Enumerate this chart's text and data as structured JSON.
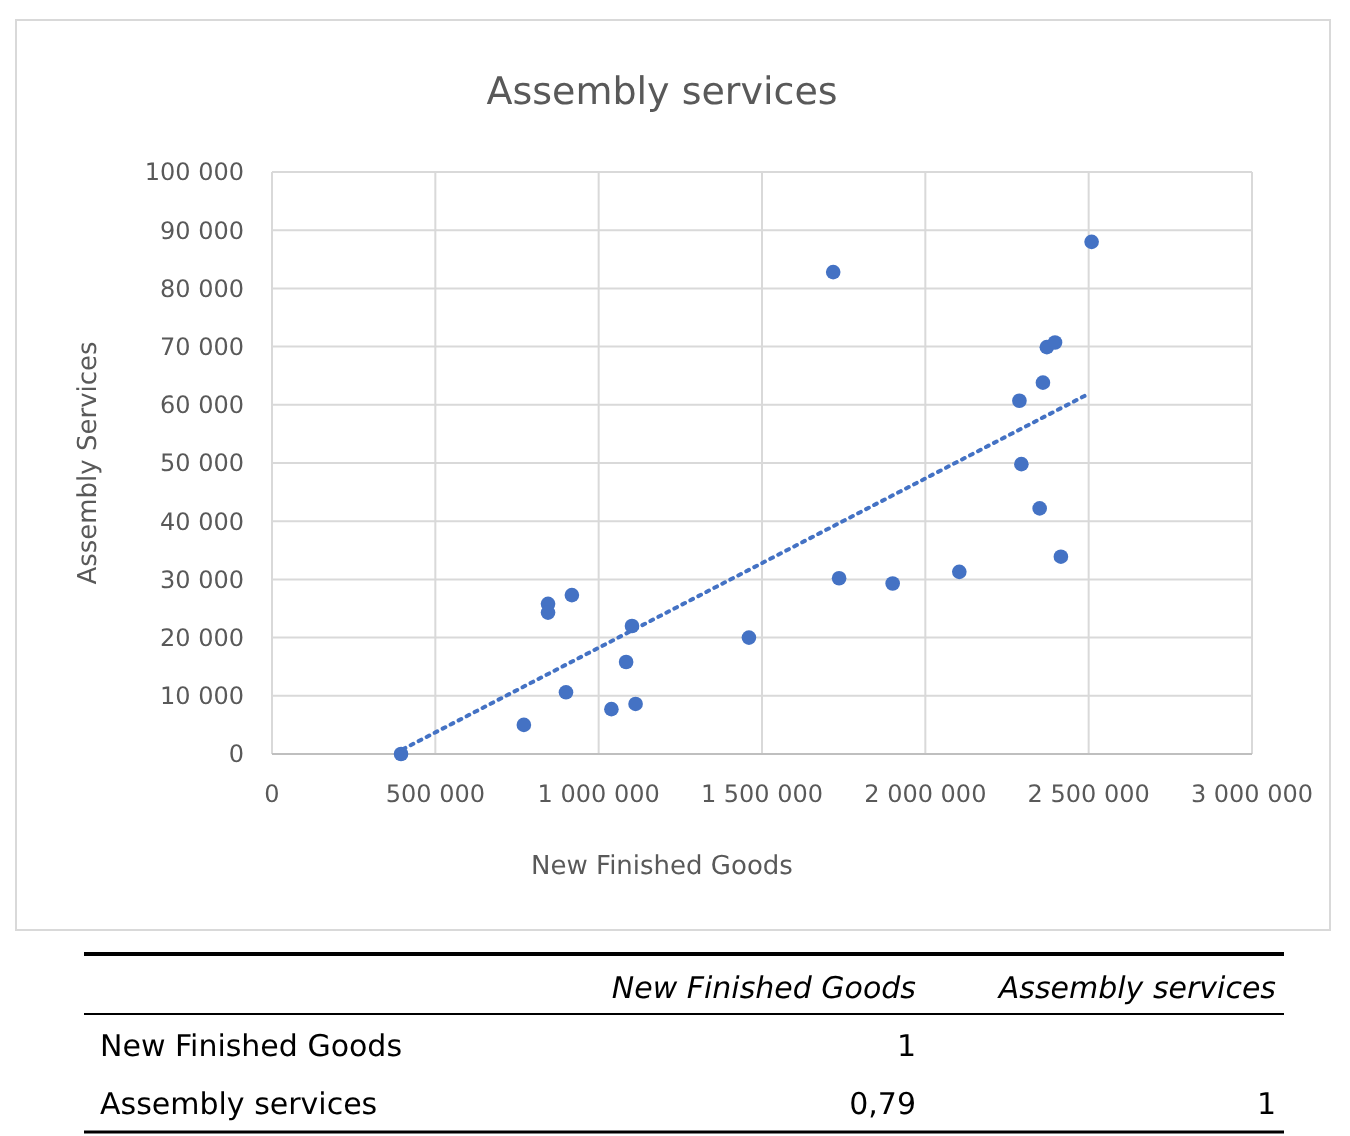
{
  "chart_data": [
    {
      "type": "scatter",
      "title": "Assembly services",
      "xlabel": "New Finished Goods",
      "ylabel": "Assembly Services",
      "xlim": [
        0,
        3000000
      ],
      "xticks": [
        0,
        {
          "value": 500000,
          "label": "500 000"
        },
        {
          "value": 1000000,
          "label": "1 000 000"
        },
        {
          "value": 1500000,
          "label": "1 500 000"
        },
        {
          "value": 2000000,
          "label": "2 000 000"
        },
        {
          "value": 2500000,
          "label": "2 500 000"
        },
        {
          "value": 3000000,
          "label": "3 000 000"
        }
      ],
      "ylim": [
        0,
        100000
      ],
      "yticks": [
        0,
        {
          "value": 10000,
          "label": "10 000"
        },
        {
          "value": 20000,
          "label": "20 000"
        },
        {
          "value": 30000,
          "label": "30 000"
        },
        {
          "value": 40000,
          "label": "40 000"
        },
        {
          "value": 50000,
          "label": "50 000"
        },
        {
          "value": 60000,
          "label": "60 000"
        },
        {
          "value": 70000,
          "label": "70 000"
        },
        {
          "value": 80000,
          "label": "80 000"
        },
        {
          "value": 90000,
          "label": "90 000"
        },
        {
          "value": 100000,
          "label": "100 000"
        }
      ],
      "grid": true,
      "marker": "circle",
      "series": [
        {
          "type": "scatter",
          "color": "#4472c4",
          "x": [
            395000,
            771000,
            845000,
            845000,
            918000,
            900000,
            1039000,
            1102000,
            1084000,
            1113000,
            1460000,
            1718000,
            1736000,
            1900000,
            2104000,
            2288000,
            2294000,
            2350000,
            2360000,
            2372000,
            2397000,
            2415000,
            2509000
          ],
          "values": [
            0,
            5000,
            25800,
            24300,
            27300,
            10600,
            7700,
            22000,
            15800,
            8600,
            20000,
            82800,
            30200,
            29300,
            31300,
            60700,
            49800,
            42200,
            63800,
            69900,
            70700,
            33900,
            88000
          ]
        },
        {
          "type": "line",
          "color": "#4472c4",
          "line_style": "dotted",
          "marker": "none",
          "x": [
            400000,
            2490000
          ],
          "values": [
            800,
            61600
          ]
        }
      ]
    },
    {
      "type": "heatmap",
      "categories": [
        "New Finished Goods",
        "Assembly services"
      ],
      "y_categories": [
        "New Finished Goods",
        "Assembly services"
      ],
      "cells": [
        [
          1,
          null
        ],
        [
          0.79,
          1
        ]
      ],
      "cell_labels": [
        [
          "1",
          null
        ],
        [
          "0,79",
          "1"
        ]
      ]
    }
  ]
}
